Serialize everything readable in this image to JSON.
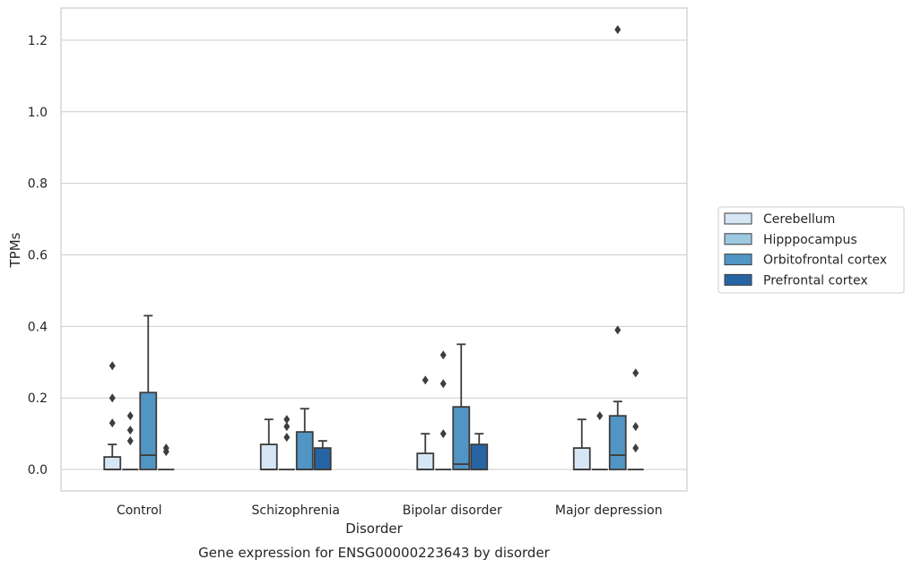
{
  "caption": "Gene expression for ENSG00000223643 by disorder",
  "chart_data": {
    "type": "box",
    "xlabel": "Disorder",
    "ylabel": "TPMs",
    "ylim": [
      -0.06,
      1.29
    ],
    "yticks": [
      0.0,
      0.2,
      0.4,
      0.6,
      0.8,
      1.0,
      1.2
    ],
    "ytick_labels": [
      "0.0",
      "0.2",
      "0.4",
      "0.6",
      "0.8",
      "1.0",
      "1.2"
    ],
    "grid": "horizontal",
    "legend_position": "right",
    "categories": [
      "Control",
      "Schizophrenia",
      "Bipolar disorder",
      "Major depression"
    ],
    "series": [
      {
        "name": "Cerebellum",
        "color": "#d6e6f4",
        "boxes": [
          {
            "q1": 0.0,
            "median": 0.0,
            "q3": 0.035,
            "whisker_low": 0.0,
            "whisker_high": 0.07,
            "outliers": [
              0.13,
              0.2,
              0.29
            ]
          },
          {
            "q1": 0.0,
            "median": 0.0,
            "q3": 0.07,
            "whisker_low": 0.0,
            "whisker_high": 0.14,
            "outliers": []
          },
          {
            "q1": 0.0,
            "median": 0.0,
            "q3": 0.045,
            "whisker_low": 0.0,
            "whisker_high": 0.1,
            "outliers": [
              0.25
            ]
          },
          {
            "q1": 0.0,
            "median": 0.0,
            "q3": 0.06,
            "whisker_low": 0.0,
            "whisker_high": 0.14,
            "outliers": []
          }
        ]
      },
      {
        "name": "Hipppocampus",
        "color": "#9dc9e1",
        "boxes": [
          {
            "q1": 0.0,
            "median": 0.0,
            "q3": 0.0,
            "whisker_low": 0.0,
            "whisker_high": 0.0,
            "outliers": [
              0.08,
              0.11,
              0.15
            ]
          },
          {
            "q1": 0.0,
            "median": 0.0,
            "q3": 0.0,
            "whisker_low": 0.0,
            "whisker_high": 0.0,
            "outliers": [
              0.09,
              0.12,
              0.14
            ]
          },
          {
            "q1": 0.0,
            "median": 0.0,
            "q3": 0.0,
            "whisker_low": 0.0,
            "whisker_high": 0.0,
            "outliers": [
              0.1,
              0.24,
              0.32
            ]
          },
          {
            "q1": 0.0,
            "median": 0.0,
            "q3": 0.0,
            "whisker_low": 0.0,
            "whisker_high": 0.0,
            "outliers": [
              0.15
            ]
          }
        ]
      },
      {
        "name": "Orbitofrontal cortex",
        "color": "#5195c4",
        "boxes": [
          {
            "q1": 0.0,
            "median": 0.04,
            "q3": 0.215,
            "whisker_low": 0.0,
            "whisker_high": 0.43,
            "outliers": []
          },
          {
            "q1": 0.0,
            "median": 0.0,
            "q3": 0.105,
            "whisker_low": 0.0,
            "whisker_high": 0.17,
            "outliers": []
          },
          {
            "q1": 0.0,
            "median": 0.015,
            "q3": 0.175,
            "whisker_low": 0.0,
            "whisker_high": 0.35,
            "outliers": []
          },
          {
            "q1": 0.0,
            "median": 0.04,
            "q3": 0.15,
            "whisker_low": 0.0,
            "whisker_high": 0.19,
            "outliers": [
              0.39,
              1.23
            ]
          }
        ]
      },
      {
        "name": "Prefrontal cortex",
        "color": "#2764a3",
        "boxes": [
          {
            "q1": 0.0,
            "median": 0.0,
            "q3": 0.0,
            "whisker_low": 0.0,
            "whisker_high": 0.0,
            "outliers": [
              0.05,
              0.06
            ]
          },
          {
            "q1": 0.0,
            "median": 0.0,
            "q3": 0.06,
            "whisker_low": 0.0,
            "whisker_high": 0.08,
            "outliers": []
          },
          {
            "q1": 0.0,
            "median": 0.0,
            "q3": 0.07,
            "whisker_low": 0.0,
            "whisker_high": 0.1,
            "outliers": []
          },
          {
            "q1": 0.0,
            "median": 0.0,
            "q3": 0.0,
            "whisker_low": 0.0,
            "whisker_high": 0.0,
            "outliers": [
              0.06,
              0.12,
              0.27
            ]
          }
        ]
      }
    ]
  }
}
